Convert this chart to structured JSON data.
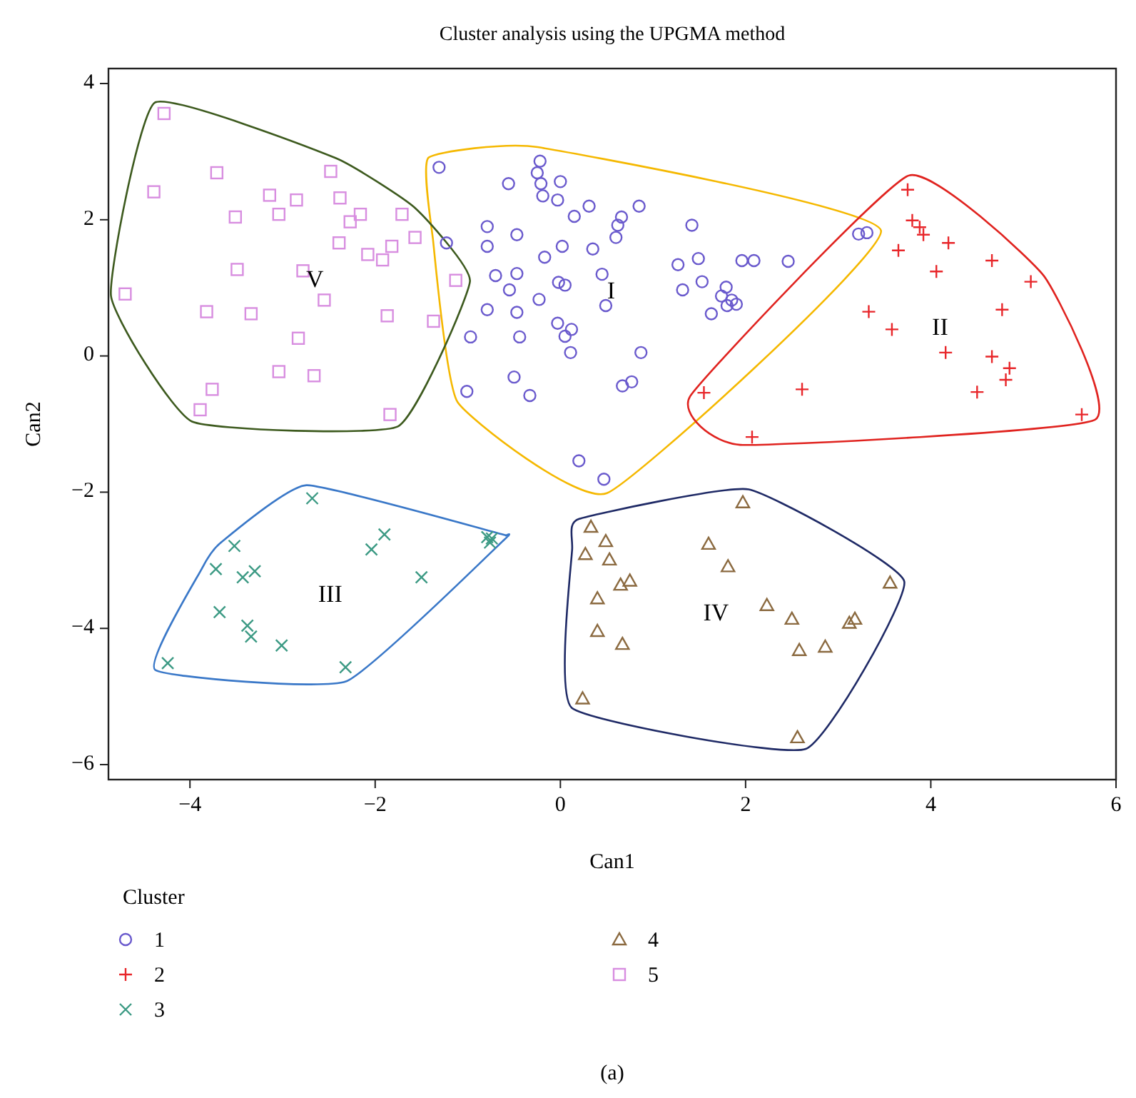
{
  "chart_data": {
    "type": "scatter",
    "title": "Cluster analysis using the UPGMA method",
    "xlabel": "Can1",
    "ylabel": "Can2",
    "legend_title": "Cluster",
    "legend": "bottom",
    "xlim": [
      -4.88,
      6
    ],
    "ylim": [
      -6.22,
      4.22
    ],
    "xticks": [
      {
        "value": -4,
        "label": "−4"
      },
      {
        "value": -2,
        "label": "−2"
      },
      0,
      2,
      4,
      6
    ],
    "yticks": [
      {
        "value": -6,
        "label": "−6"
      },
      {
        "value": -4,
        "label": "−4"
      },
      {
        "value": -2,
        "label": "−2"
      },
      0,
      2,
      4
    ],
    "series": [
      {
        "name": "1",
        "color": "#6a5acd",
        "marker": "circle",
        "x": [
          -1.31,
          -0.22,
          -0.25,
          -0.21,
          0.0,
          -0.56,
          -0.19,
          -0.03,
          0.31,
          0.15,
          0.85,
          0.66,
          0.62,
          0.6,
          1.42,
          -0.79,
          -0.47,
          -1.23,
          -0.79,
          0.02,
          0.35,
          -0.17,
          1.27,
          1.49,
          1.96,
          2.09,
          2.46,
          -0.7,
          -0.47,
          0.45,
          -0.02,
          0.05,
          -0.55,
          -0.23,
          1.32,
          1.53,
          1.79,
          1.74,
          1.85,
          1.9,
          1.8,
          1.63,
          -0.79,
          -0.47,
          0.49,
          -0.03,
          0.12,
          0.05,
          -0.97,
          -0.44,
          0.11,
          0.87,
          -0.5,
          -1.01,
          -0.33,
          0.67,
          0.77,
          0.2,
          0.47,
          3.22,
          3.31
        ],
        "values": [
          2.77,
          2.86,
          2.69,
          2.53,
          2.56,
          2.53,
          2.35,
          2.29,
          2.2,
          2.05,
          2.2,
          2.04,
          1.92,
          1.74,
          1.92,
          1.9,
          1.78,
          1.66,
          1.61,
          1.61,
          1.57,
          1.45,
          1.34,
          1.43,
          1.4,
          1.4,
          1.39,
          1.18,
          1.21,
          1.2,
          1.08,
          1.04,
          0.97,
          0.83,
          0.97,
          1.09,
          1.01,
          0.88,
          0.82,
          0.76,
          0.74,
          0.62,
          0.68,
          0.64,
          0.74,
          0.48,
          0.39,
          0.29,
          0.28,
          0.28,
          0.05,
          0.05,
          -0.31,
          -0.52,
          -0.58,
          -0.44,
          -0.38,
          -1.54,
          -1.81,
          1.79,
          1.81
        ]
      },
      {
        "name": "2",
        "color": "#e8262a",
        "marker": "plus",
        "x": [
          3.75,
          3.8,
          3.88,
          3.92,
          3.65,
          4.19,
          4.66,
          4.06,
          5.08,
          3.33,
          4.77,
          3.58,
          4.16,
          4.66,
          4.85,
          4.81,
          4.5,
          1.55,
          2.61,
          5.63,
          2.07
        ],
        "values": [
          2.44,
          1.99,
          1.89,
          1.78,
          1.55,
          1.66,
          1.4,
          1.24,
          1.09,
          0.65,
          0.68,
          0.39,
          0.05,
          -0.01,
          -0.18,
          -0.35,
          -0.53,
          -0.54,
          -0.49,
          -0.86,
          -1.19
        ]
      },
      {
        "name": "3",
        "color": "#3c9a84",
        "marker": "cross",
        "x": [
          -2.68,
          -1.9,
          -2.04,
          -3.52,
          -3.72,
          -3.43,
          -3.3,
          -1.5,
          -3.68,
          -3.38,
          -3.34,
          -3.01,
          -2.32,
          -4.24,
          -0.79,
          -0.74,
          -0.76
        ],
        "values": [
          -2.09,
          -2.62,
          -2.84,
          -2.79,
          -3.13,
          -3.25,
          -3.16,
          -3.25,
          -3.76,
          -3.96,
          -4.12,
          -4.25,
          -4.57,
          -4.51,
          -2.66,
          -2.68,
          -2.74
        ]
      },
      {
        "name": "4",
        "color": "#8b6a40",
        "marker": "triangle",
        "x": [
          1.97,
          0.33,
          0.49,
          0.27,
          0.53,
          1.6,
          1.81,
          0.75,
          0.65,
          0.4,
          3.56,
          2.23,
          2.5,
          3.18,
          3.12,
          0.4,
          0.67,
          2.58,
          2.86,
          0.24,
          2.56
        ],
        "values": [
          -2.15,
          -2.51,
          -2.72,
          -2.91,
          -2.99,
          -2.76,
          -3.09,
          -3.3,
          -3.36,
          -3.56,
          -3.33,
          -3.66,
          -3.86,
          -3.86,
          -3.92,
          -4.04,
          -4.23,
          -4.32,
          -4.27,
          -5.03,
          -5.6
        ]
      },
      {
        "name": "5",
        "color": "#d88ee0",
        "marker": "square",
        "x": [
          -4.28,
          -3.71,
          -4.39,
          -3.14,
          -2.85,
          -2.48,
          -2.38,
          -3.51,
          -3.04,
          -2.16,
          -2.27,
          -1.71,
          -1.57,
          -2.39,
          -2.08,
          -1.82,
          -1.92,
          -3.49,
          -2.78,
          -1.13,
          -4.7,
          -2.55,
          -3.82,
          -3.34,
          -1.87,
          -1.37,
          -2.83,
          -3.04,
          -2.66,
          -3.76,
          -3.89,
          -1.84
        ],
        "values": [
          3.56,
          2.69,
          2.41,
          2.36,
          2.29,
          2.71,
          2.32,
          2.04,
          2.08,
          2.08,
          1.97,
          2.08,
          1.74,
          1.66,
          1.49,
          1.61,
          1.41,
          1.27,
          1.25,
          1.11,
          0.91,
          0.82,
          0.65,
          0.62,
          0.59,
          0.51,
          0.26,
          -0.23,
          -0.29,
          -0.49,
          -0.79,
          -0.86
        ]
      }
    ],
    "annotations": [
      "I",
      "II",
      "III",
      "IV",
      "V",
      "(a)"
    ]
  }
}
